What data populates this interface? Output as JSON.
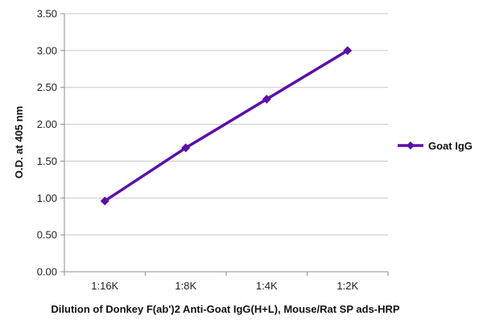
{
  "chart_data": {
    "type": "line",
    "title": "",
    "xlabel": "Dilution of Donkey F(ab')2 Anti-Goat IgG(H+L), Mouse/Rat SP ads-HRP",
    "ylabel": "O.D. at 405 nm",
    "categories": [
      "1:16K",
      "1:8K",
      "1:4K",
      "1:2K"
    ],
    "series": [
      {
        "name": "Goat IgG",
        "values": [
          0.96,
          1.68,
          2.34,
          3.0
        ],
        "color": "#5b0fa8",
        "marker": "diamond"
      }
    ],
    "ylim": [
      0,
      3.5
    ],
    "yticks": [
      "0.00",
      "0.50",
      "1.00",
      "1.50",
      "2.00",
      "2.50",
      "3.00",
      "3.50"
    ],
    "grid": true,
    "legend": "right"
  }
}
